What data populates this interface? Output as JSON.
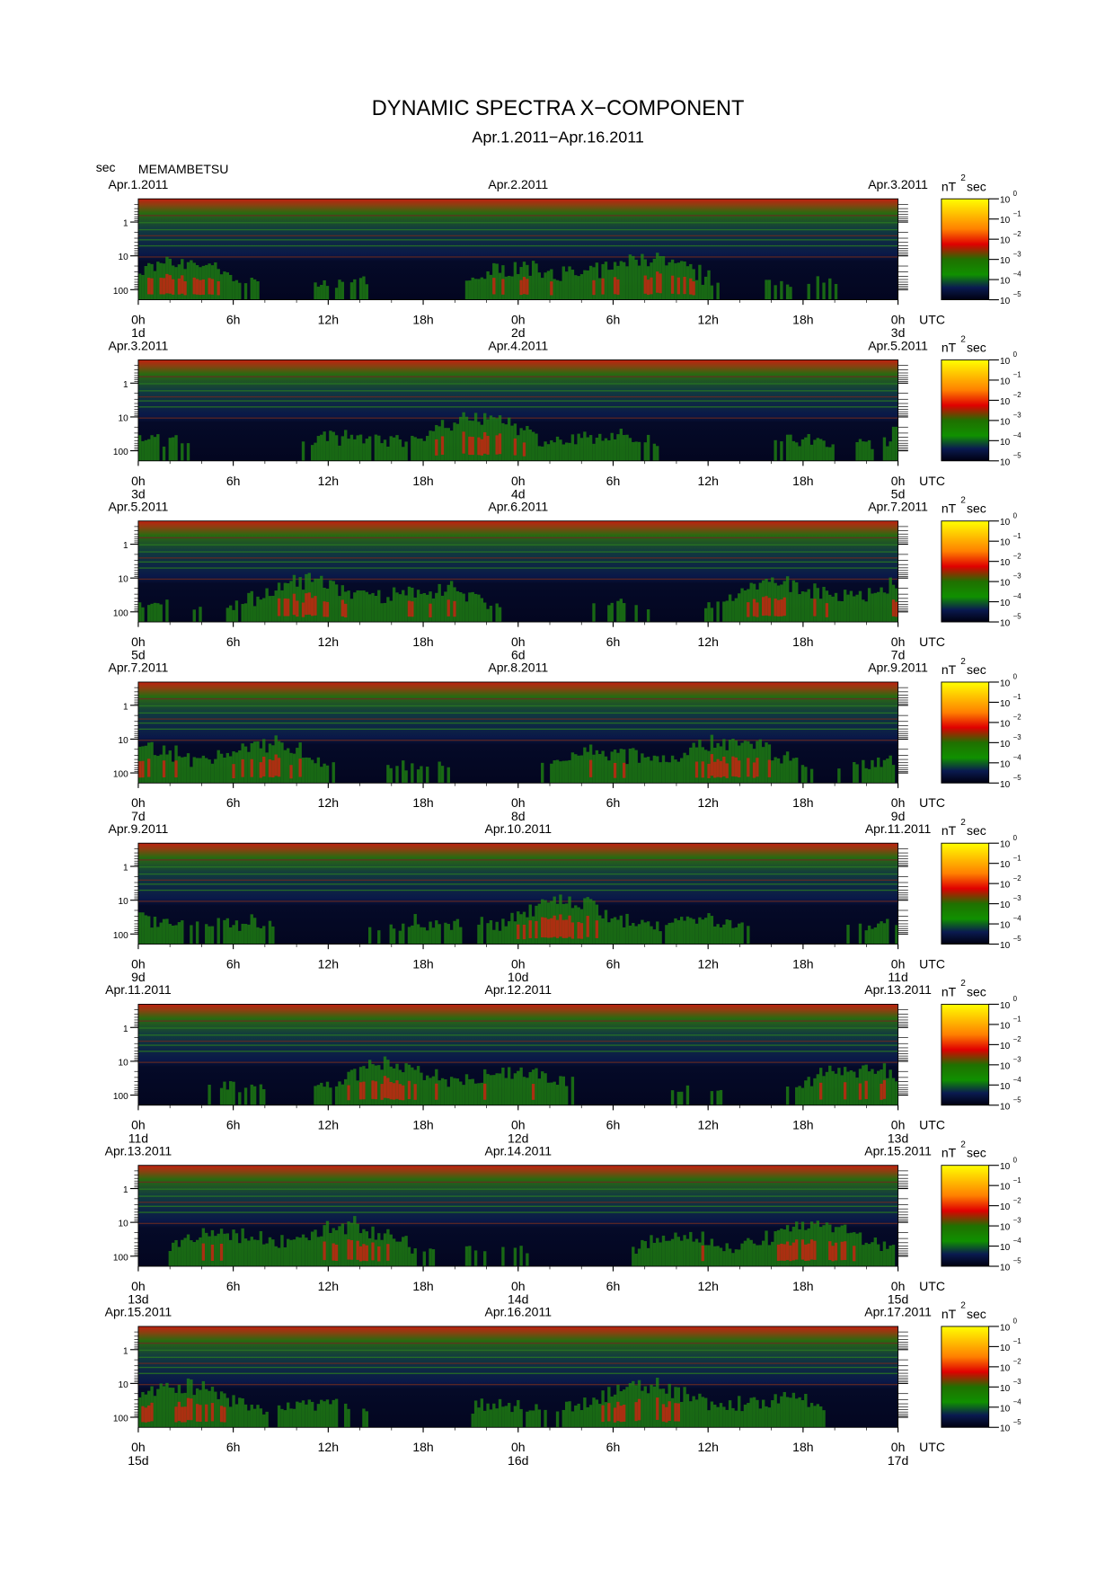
{
  "header": {
    "title": "DYNAMIC SPECTRA X−COMPONENT",
    "subtitle": "Apr.1.2011−Apr.16.2011"
  },
  "axis_unit": "sec",
  "station": "MEMAMBETSU",
  "period_ticks": [
    1,
    10,
    100
  ],
  "hour_ticks": [
    "0h",
    "6h",
    "12h",
    "18h",
    "0h",
    "6h",
    "12h",
    "18h",
    "0h"
  ],
  "time_zone": "UTC",
  "colorbar": {
    "unit": "nT",
    "unit_exponent": "2",
    "unit_suffix": "sec",
    "base": "10",
    "exponents": [
      "0",
      "−1",
      "−2",
      "−3",
      "−4",
      "−5"
    ]
  },
  "panels": [
    {
      "dates": [
        "Apr.1.2011",
        "Apr.2.2011",
        "Apr.3.2011"
      ],
      "days": [
        "1d",
        "2d",
        "3d"
      ]
    },
    {
      "dates": [
        "Apr.3.2011",
        "Apr.4.2011",
        "Apr.5.2011"
      ],
      "days": [
        "3d",
        "4d",
        "5d"
      ]
    },
    {
      "dates": [
        "Apr.5.2011",
        "Apr.6.2011",
        "Apr.7.2011"
      ],
      "days": [
        "5d",
        "6d",
        "7d"
      ]
    },
    {
      "dates": [
        "Apr.7.2011",
        "Apr.8.2011",
        "Apr.9.2011"
      ],
      "days": [
        "7d",
        "8d",
        "9d"
      ]
    },
    {
      "dates": [
        "Apr.9.2011",
        "Apr.10.2011",
        "Apr.11.2011"
      ],
      "days": [
        "9d",
        "10d",
        "11d"
      ]
    },
    {
      "dates": [
        "Apr.11.2011",
        "Apr.12.2011",
        "Apr.13.2011"
      ],
      "days": [
        "11d",
        "12d",
        "13d"
      ]
    },
    {
      "dates": [
        "Apr.13.2011",
        "Apr.14.2011",
        "Apr.15.2011"
      ],
      "days": [
        "13d",
        "14d",
        "15d"
      ]
    },
    {
      "dates": [
        "Apr.15.2011",
        "Apr.16.2011",
        "Apr.17.2011"
      ],
      "days": [
        "15d",
        "16d",
        "17d"
      ]
    }
  ]
}
